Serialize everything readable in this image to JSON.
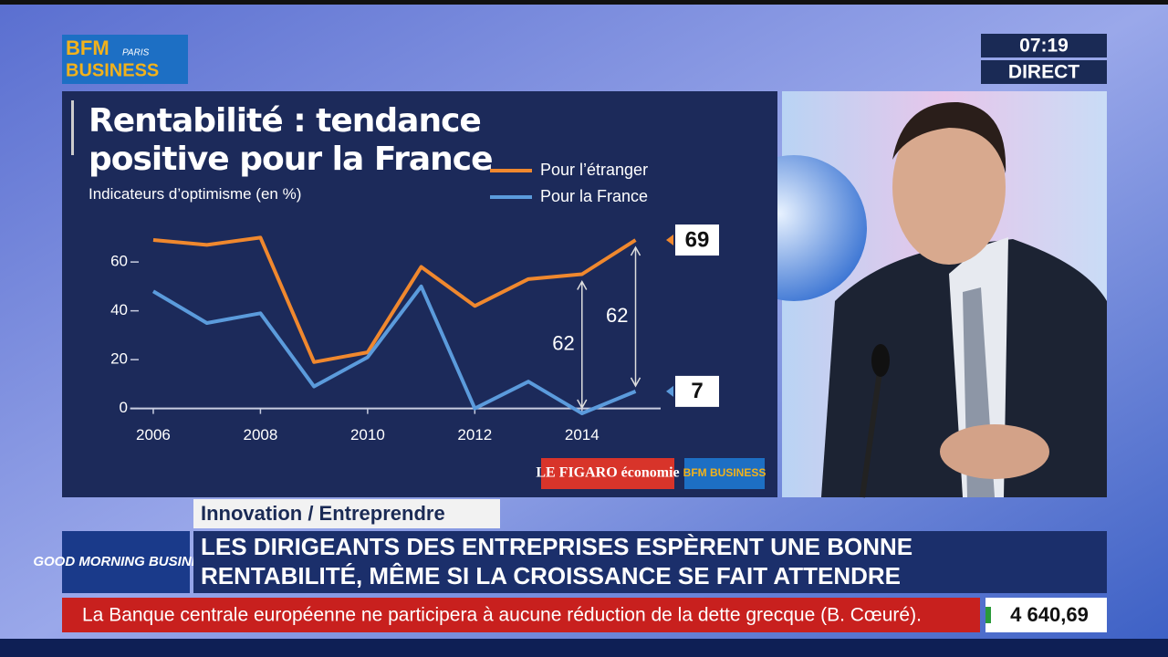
{
  "header": {
    "logo_top": "BFM",
    "logo_paris": "PARIS",
    "logo_bottom": "BUSINESS",
    "time": "07:19",
    "status": "DIRECT"
  },
  "chart_data": {
    "type": "line",
    "title": "Rentabilité : tendance positive pour la France",
    "subtitle": "Indicateurs d’optimisme (en %)",
    "x": [
      2006,
      2007,
      2008,
      2009,
      2010,
      2011,
      2012,
      2013,
      2014,
      2015
    ],
    "series": [
      {
        "name": "Pour l’étranger",
        "color": "#f0882e",
        "values": [
          69,
          67,
          70,
          19,
          23,
          58,
          42,
          53,
          55,
          69
        ]
      },
      {
        "name": "Pour la France",
        "color": "#5b9bdc",
        "values": [
          48,
          35,
          39,
          9,
          21,
          50,
          0,
          11,
          -2,
          7
        ]
      }
    ],
    "xlim": [
      2005.5,
      2015.4
    ],
    "xticks": [
      2006,
      2008,
      2010,
      2012,
      2014
    ],
    "ylim": [
      -5,
      75
    ],
    "yticks": [
      0,
      20,
      40,
      60
    ],
    "annotations": [
      {
        "text": "62",
        "x": 2014
      },
      {
        "text": "62",
        "x": 2015
      }
    ],
    "sources": [
      "LE FIGARO économie",
      "BFM BUSINESS"
    ]
  },
  "banner": {
    "category": "Innovation / Entreprendre",
    "show": "GOOD MORNING BUSINESS",
    "headline": [
      "LES DIRIGEANTS DES ENTREPRISES ESPÈRENT UNE BONNE",
      "RENTABILITÉ, MÊME SI LA CROISSANCE SE FAIT ATTENDRE"
    ]
  },
  "ticker": {
    "text": "La Banque centrale européenne ne participera à aucune réduction de la dette grecque (B. Cœuré).",
    "index": "4 640,69"
  }
}
